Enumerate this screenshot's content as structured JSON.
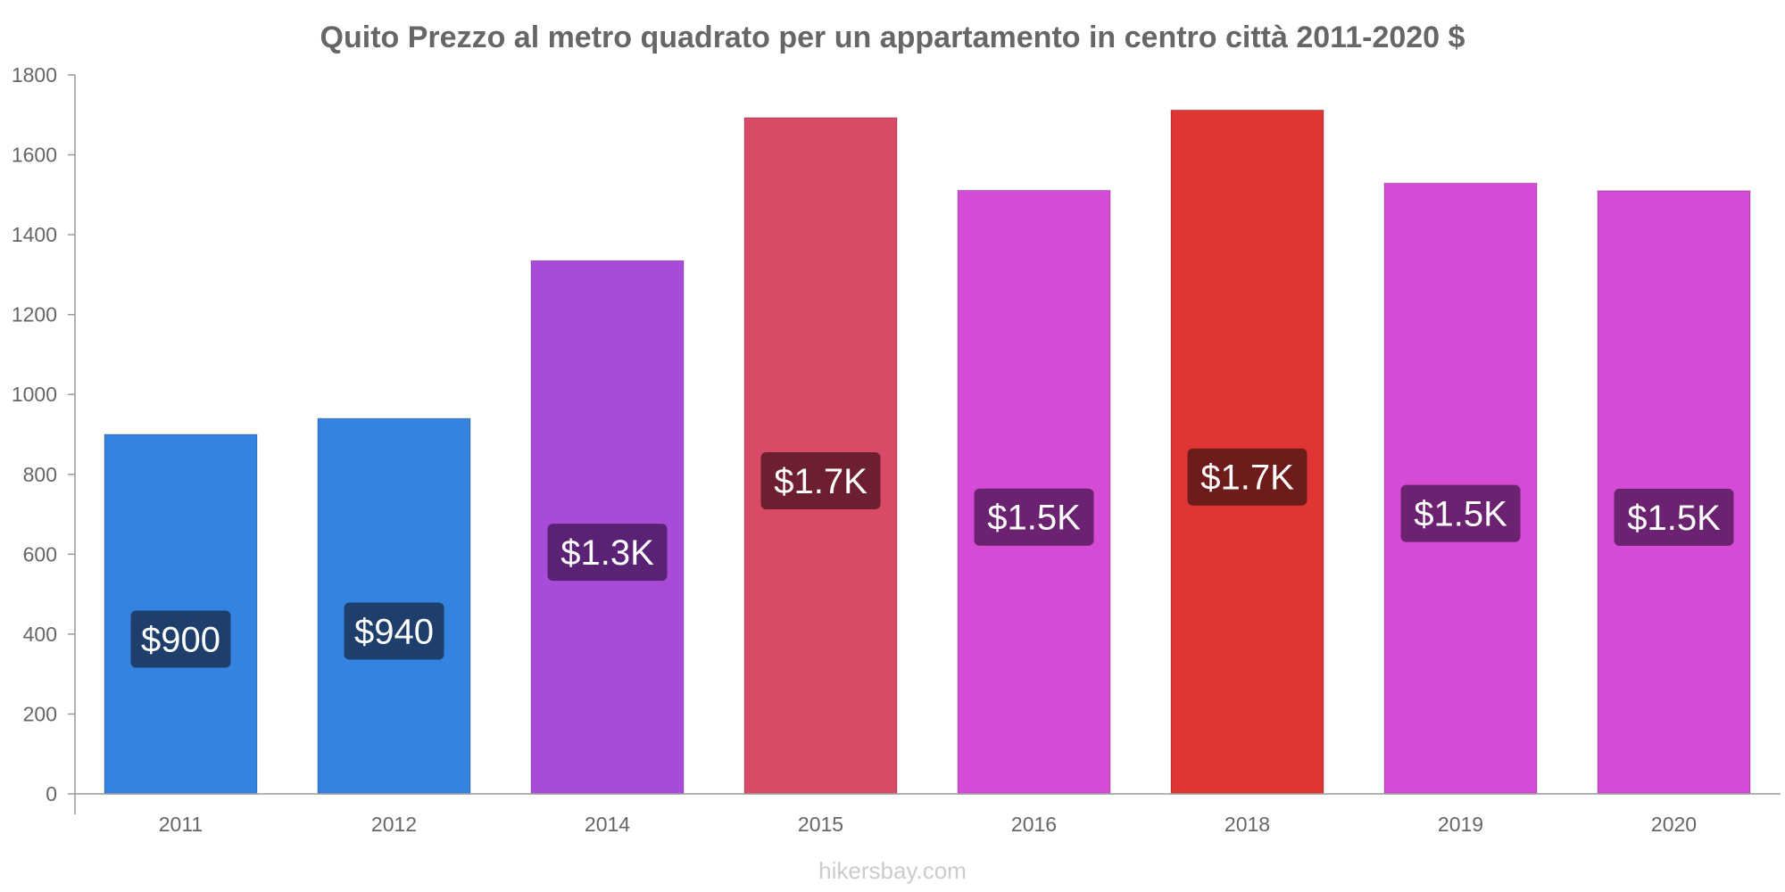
{
  "chart_data": {
    "type": "bar",
    "title": "Quito Prezzo al metro quadrato per un appartamento in centro città 2011-2020 $",
    "xlabel": "",
    "ylabel": "",
    "categories": [
      "2011",
      "2012",
      "2014",
      "2015",
      "2016",
      "2018",
      "2019",
      "2020"
    ],
    "values": [
      900,
      940,
      1335,
      1693,
      1511,
      1712,
      1529,
      1510
    ],
    "data_labels": [
      "$900",
      "$940",
      "$1.3K",
      "$1.7K",
      "$1.5K",
      "$1.7K",
      "$1.5K",
      "$1.5K"
    ],
    "bar_colors": [
      "#3583e0",
      "#3583e0",
      "#a94bd9",
      "#d84a66",
      "#d54bd5",
      "#e03535",
      "#d54bd5",
      "#d54bd5"
    ],
    "label_bg_colors": [
      "#1e3f6b",
      "#1e3f6b",
      "#5a2274",
      "#6e1f2f",
      "#6b2270",
      "#6e1b1b",
      "#6b2270",
      "#6b2270"
    ],
    "ylim": [
      0,
      1800
    ],
    "yticks": [
      0,
      200,
      400,
      600,
      800,
      1000,
      1200,
      1400,
      1600,
      1800
    ],
    "grid": false,
    "legend": "none"
  },
  "watermark": "hikersbay.com"
}
